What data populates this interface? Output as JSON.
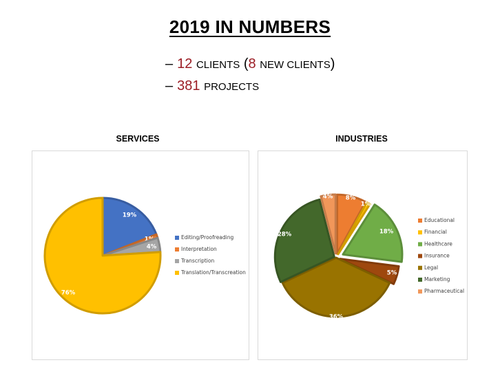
{
  "header": {
    "title": "2019 IN NUMBERS",
    "stats": [
      {
        "dash": "–",
        "number": "12",
        "text": "CLIENTS",
        "open": "(",
        "number2": "8",
        "text2": "NEW CLIENTS",
        "close": ")"
      },
      {
        "dash": "–",
        "number": "381",
        "text": "PROJECTS"
      }
    ]
  },
  "chart_data": [
    {
      "type": "pie",
      "title": "SERVICES",
      "categories": [
        "Editing/Proofreading",
        "Interpretation",
        "Transcription",
        "Translation/Transcreation"
      ],
      "values": [
        19,
        1,
        4,
        76
      ],
      "labels": [
        "19%",
        "1%",
        "4%",
        "76%"
      ],
      "colors": [
        "#4472c4",
        "#ed7d31",
        "#a5a5a5",
        "#ffc000"
      ],
      "legend": "right"
    },
    {
      "type": "pie",
      "title": "INDUSTRIES",
      "categories": [
        "Educational",
        "Financial",
        "Healthcare",
        "Insurance",
        "Legal",
        "Marketing",
        "Pharmaceutical"
      ],
      "values": [
        8,
        1,
        18,
        5,
        36,
        28,
        4
      ],
      "labels": [
        "8%",
        "1%",
        "18%",
        "5%",
        "36%",
        "28%",
        "4%"
      ],
      "colors": [
        "#ed7d31",
        "#ffc000",
        "#70ad47",
        "#9e480e",
        "#997300",
        "#43682b",
        "#f1975a"
      ],
      "legend": "right"
    }
  ]
}
